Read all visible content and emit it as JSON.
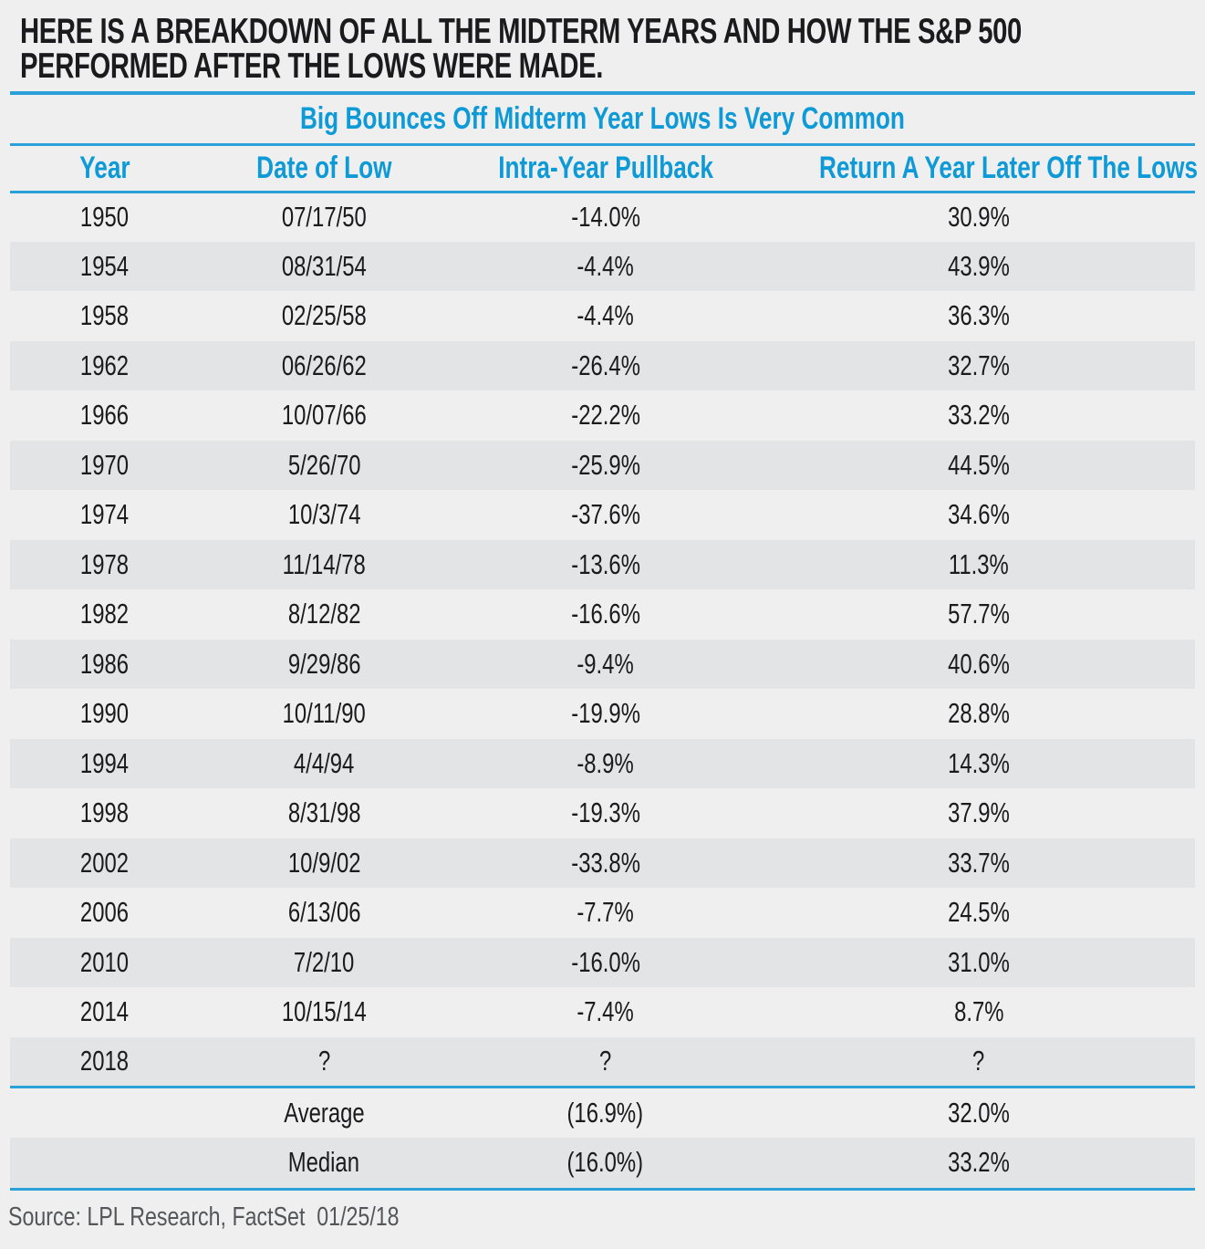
{
  "header": {
    "title_lines": [
      "HERE IS A BREAKDOWN OF ALL THE MIDTERM YEARS AND HOW THE S&P 500",
      "PERFORMED AFTER THE LOWS WERE MADE."
    ]
  },
  "chart_data": {
    "type": "table",
    "title": "Big Bounces Off Midterm Year Lows Is Very Common",
    "columns": [
      "Year",
      "Date of Low",
      "Intra-Year Pullback",
      "Return A Year Later Off The Lows"
    ],
    "rows": [
      [
        "1950",
        "07/17/50",
        "-14.0%",
        "30.9%"
      ],
      [
        "1954",
        "08/31/54",
        "-4.4%",
        "43.9%"
      ],
      [
        "1958",
        "02/25/58",
        "-4.4%",
        "36.3%"
      ],
      [
        "1962",
        "06/26/62",
        "-26.4%",
        "32.7%"
      ],
      [
        "1966",
        "10/07/66",
        "-22.2%",
        "33.2%"
      ],
      [
        "1970",
        "5/26/70",
        "-25.9%",
        "44.5%"
      ],
      [
        "1974",
        "10/3/74",
        "-37.6%",
        "34.6%"
      ],
      [
        "1978",
        "11/14/78",
        "-13.6%",
        "11.3%"
      ],
      [
        "1982",
        "8/12/82",
        "-16.6%",
        "57.7%"
      ],
      [
        "1986",
        "9/29/86",
        "-9.4%",
        "40.6%"
      ],
      [
        "1990",
        "10/11/90",
        "-19.9%",
        "28.8%"
      ],
      [
        "1994",
        "4/4/94",
        "-8.9%",
        "14.3%"
      ],
      [
        "1998",
        "8/31/98",
        "-19.3%",
        "37.9%"
      ],
      [
        "2002",
        "10/9/02",
        "-33.8%",
        "33.7%"
      ],
      [
        "2006",
        "6/13/06",
        "-7.7%",
        "24.5%"
      ],
      [
        "2010",
        "7/2/10",
        "-16.0%",
        "31.0%"
      ],
      [
        "2014",
        "10/15/14",
        "-7.4%",
        "8.7%"
      ],
      [
        "2018",
        "?",
        "?",
        "?"
      ]
    ],
    "summary": [
      [
        "",
        "Average",
        "(16.9%)",
        "32.0%"
      ],
      [
        "",
        "Median",
        "(16.0%)",
        "33.2%"
      ]
    ],
    "source": "Source: LPL Research, FactSet  01/25/18",
    "layout_hints": {
      "grid": "horizontal rules only",
      "row_striping": "alternating light/dark gray",
      "alignment": "all columns centered"
    }
  },
  "colors": {
    "accent_blue_text": "#0d9ad7",
    "rule_blue": "#2aa1d9",
    "background": "#efefef",
    "row_alt": "#e3e4e6",
    "title_black": "#1b1b1d",
    "source_gray": "#55565a"
  }
}
